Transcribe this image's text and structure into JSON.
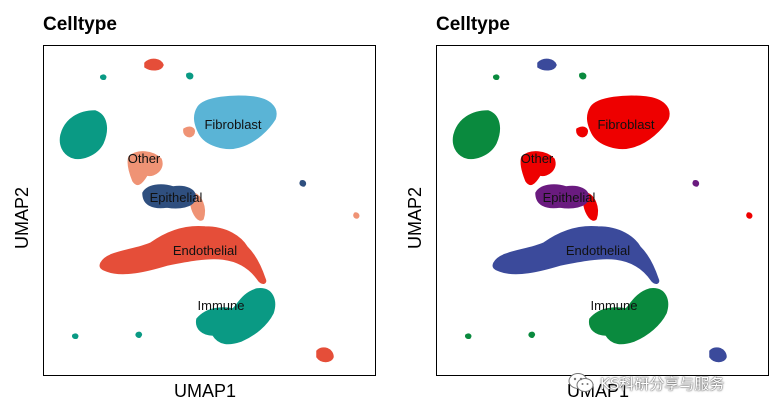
{
  "chart_data": [
    {
      "type": "scatter",
      "title": "Celltype",
      "xlabel": "UMAP1",
      "ylabel": "UMAP2",
      "legend": "none",
      "cluster_labels": [
        "Fibroblast",
        "Other",
        "Epithelial",
        "Endothelial",
        "Immune"
      ],
      "colors": {
        "Fibroblast": "#5ab4d6",
        "Other": "#ef9375",
        "Epithelial": "#2f4f7f",
        "Endothelial": "#e54e39",
        "Immune": "#0a9a84"
      }
    },
    {
      "type": "scatter",
      "title": "Celltype",
      "xlabel": "UMAP1",
      "ylabel": "UMAP2",
      "legend": "none",
      "cluster_labels": [
        "Fibroblast",
        "Other",
        "Epithelial",
        "Endothelial",
        "Immune"
      ],
      "colors": {
        "Fibroblast": "#ee0000",
        "Other": "#ee0000",
        "Epithelial": "#6a1b7f",
        "Endothelial": "#3b4a9b",
        "Immune": "#0a8a3e"
      }
    }
  ],
  "watermark": {
    "text": "KS科研分享与服务",
    "icon": "wechat-icon"
  }
}
